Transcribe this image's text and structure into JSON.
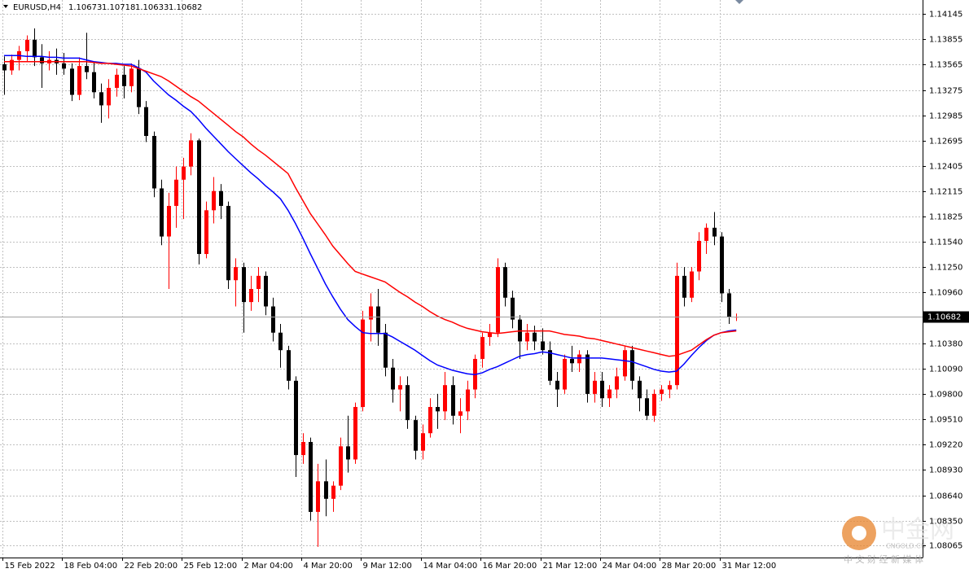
{
  "chart_data": {
    "type": "candlestick",
    "symbol": "EURUSD,H4",
    "categories": [
      "15 Feb 2022",
      null,
      null,
      null,
      null,
      null,
      null,
      null,
      "18 Feb 04:00",
      null,
      null,
      null,
      null,
      null,
      null,
      null,
      "22 Feb 20:00",
      null,
      null,
      null,
      null,
      null,
      null,
      null,
      "25 Feb 12:00",
      null,
      null,
      null,
      null,
      null,
      null,
      null,
      "2 Mar 04:00",
      null,
      null,
      null,
      null,
      null,
      null,
      null,
      "4 Mar 20:00",
      null,
      null,
      null,
      null,
      null,
      null,
      null,
      "9 Mar 12:00",
      null,
      null,
      null,
      null,
      null,
      null,
      null,
      "14 Mar 04:00",
      null,
      null,
      null,
      null,
      null,
      null,
      null,
      "16 Mar 20:00",
      null,
      null,
      null,
      null,
      null,
      null,
      null,
      "21 Mar 12:00",
      null,
      null,
      null,
      null,
      null,
      null,
      null,
      "24 Mar 04:00",
      null,
      null,
      null,
      null,
      null,
      null,
      null,
      "28 Mar 20:00",
      null,
      null,
      null,
      null,
      null,
      null,
      null,
      "31 Mar 12:00",
      null,
      null
    ],
    "candles": [
      [
        1.1357,
        1.1366,
        1.1322,
        1.135
      ],
      [
        1.135,
        1.1368,
        1.1345,
        1.1362
      ],
      [
        1.1362,
        1.1378,
        1.135,
        1.1372
      ],
      [
        1.1372,
        1.139,
        1.136,
        1.1385
      ],
      [
        1.1385,
        1.1398,
        1.1355,
        1.1365
      ],
      [
        1.1365,
        1.138,
        1.133,
        1.1358
      ],
      [
        1.1358,
        1.1372,
        1.135,
        1.1362
      ],
      [
        1.1362,
        1.1375,
        1.1345,
        1.1358
      ],
      [
        1.1358,
        1.137,
        1.1345,
        1.1352
      ],
      [
        1.1352,
        1.1358,
        1.1315,
        1.1322
      ],
      [
        1.1322,
        1.1365,
        1.1316,
        1.1355
      ],
      [
        1.1355,
        1.1393,
        1.134,
        1.1348
      ],
      [
        1.1348,
        1.136,
        1.1318,
        1.1325
      ],
      [
        1.1325,
        1.1335,
        1.129,
        1.131
      ],
      [
        1.131,
        1.134,
        1.1295,
        1.133
      ],
      [
        1.133,
        1.1352,
        1.132,
        1.1345
      ],
      [
        1.1345,
        1.1355,
        1.1318,
        1.1332
      ],
      [
        1.1332,
        1.1358,
        1.1325,
        1.1352
      ],
      [
        1.1352,
        1.1362,
        1.13,
        1.1308
      ],
      [
        1.1308,
        1.1315,
        1.1268,
        1.1275
      ],
      [
        1.1275,
        1.128,
        1.1205,
        1.1215
      ],
      [
        1.1215,
        1.1225,
        1.115,
        1.116
      ],
      [
        1.116,
        1.121,
        1.11,
        1.1195
      ],
      [
        1.1195,
        1.124,
        1.117,
        1.1225
      ],
      [
        1.1225,
        1.125,
        1.118,
        1.124
      ],
      [
        1.124,
        1.1278,
        1.123,
        1.127
      ],
      [
        1.127,
        1.1272,
        1.1128,
        1.114
      ],
      [
        1.114,
        1.12,
        1.1135,
        1.119
      ],
      [
        1.119,
        1.1228,
        1.1175,
        1.1212
      ],
      [
        1.1212,
        1.122,
        1.118,
        1.1195
      ],
      [
        1.1195,
        1.12,
        1.11,
        1.111
      ],
      [
        1.111,
        1.1135,
        1.108,
        1.1125
      ],
      [
        1.1125,
        1.113,
        1.105,
        1.1085
      ],
      [
        1.1085,
        1.1115,
        1.1075,
        1.11
      ],
      [
        1.11,
        1.1125,
        1.1085,
        1.1115
      ],
      [
        1.1115,
        1.112,
        1.107,
        1.108
      ],
      [
        1.108,
        1.109,
        1.104,
        1.105
      ],
      [
        1.105,
        1.106,
        1.101,
        1.103
      ],
      [
        1.103,
        1.1035,
        1.0985,
        1.0995
      ],
      [
        1.0995,
        1.1,
        1.0885,
        1.091
      ],
      [
        1.091,
        1.0935,
        1.09,
        1.0925
      ],
      [
        1.0925,
        1.093,
        1.0835,
        1.0845
      ],
      [
        1.0845,
        1.09,
        1.0805,
        1.088
      ],
      [
        1.088,
        1.0905,
        1.084,
        1.086
      ],
      [
        1.086,
        1.088,
        1.0845,
        1.0875
      ],
      [
        1.0875,
        1.093,
        1.087,
        1.092
      ],
      [
        1.092,
        1.0955,
        1.089,
        1.0905
      ],
      [
        1.0905,
        1.097,
        1.09,
        1.0965
      ],
      [
        1.0965,
        1.1075,
        1.096,
        1.1065
      ],
      [
        1.1065,
        1.1095,
        1.104,
        1.108
      ],
      [
        1.108,
        1.11,
        1.1035,
        1.105
      ],
      [
        1.105,
        1.106,
        1.1,
        1.101
      ],
      [
        1.101,
        1.102,
        1.097,
        1.0985
      ],
      [
        1.0985,
        1.1,
        1.096,
        1.099
      ],
      [
        1.099,
        1.1,
        1.094,
        1.095
      ],
      [
        1.095,
        1.0955,
        1.0905,
        1.0915
      ],
      [
        1.0915,
        1.0945,
        1.0905,
        1.0935
      ],
      [
        1.0935,
        1.0975,
        1.093,
        1.0965
      ],
      [
        1.0965,
        1.098,
        1.094,
        1.096
      ],
      [
        1.096,
        1.1005,
        1.095,
        1.099
      ],
      [
        1.099,
        1.1,
        1.0945,
        1.0955
      ],
      [
        1.0955,
        1.0975,
        1.0935,
        1.096
      ],
      [
        1.096,
        1.0995,
        1.095,
        1.0985
      ],
      [
        1.0985,
        1.1025,
        1.0975,
        1.102
      ],
      [
        1.102,
        1.105,
        1.101,
        1.1045
      ],
      [
        1.1045,
        1.106,
        1.1035,
        1.105
      ],
      [
        1.105,
        1.1135,
        1.1045,
        1.1125
      ],
      [
        1.1125,
        1.113,
        1.108,
        1.109
      ],
      [
        1.109,
        1.1098,
        1.1055,
        1.1065
      ],
      [
        1.1065,
        1.107,
        1.102,
        1.104
      ],
      [
        1.104,
        1.106,
        1.103,
        1.105
      ],
      [
        1.105,
        1.1058,
        1.103,
        1.104
      ],
      [
        1.104,
        1.1055,
        1.1025,
        1.103
      ],
      [
        1.103,
        1.104,
        1.099,
        1.0995
      ],
      [
        1.0995,
        1.1005,
        1.0965,
        1.0985
      ],
      [
        1.0985,
        1.1025,
        1.098,
        1.102
      ],
      [
        1.102,
        1.1035,
        1.1005,
        1.1015
      ],
      [
        1.1015,
        1.103,
        1.1005,
        1.1025
      ],
      [
        1.1025,
        1.103,
        1.097,
        1.098
      ],
      [
        1.098,
        1.1005,
        1.097,
        1.0995
      ],
      [
        1.0995,
        1.1005,
        1.0965,
        1.0975
      ],
      [
        1.0975,
        1.099,
        1.0965,
        1.0985
      ],
      [
        1.0985,
        1.101,
        1.0975,
        1.1
      ],
      [
        1.1,
        1.1035,
        1.0995,
        1.103
      ],
      [
        1.103,
        1.1035,
        1.0985,
        1.0995
      ],
      [
        1.0995,
        1.1,
        1.096,
        1.0975
      ],
      [
        1.0975,
        1.0985,
        1.095,
        1.0955
      ],
      [
        1.0955,
        1.0985,
        1.0948,
        1.098
      ],
      [
        1.098,
        1.099,
        1.0972,
        1.0985
      ],
      [
        1.0985,
        1.0995,
        1.0975,
        1.099
      ],
      [
        1.099,
        1.113,
        1.0985,
        1.1115
      ],
      [
        1.1115,
        1.1125,
        1.108,
        1.109
      ],
      [
        1.109,
        1.1125,
        1.1085,
        1.112
      ],
      [
        1.112,
        1.1165,
        1.111,
        1.1155
      ],
      [
        1.1155,
        1.1175,
        1.114,
        1.117
      ],
      [
        1.117,
        1.1188,
        1.115,
        1.116
      ],
      [
        1.116,
        1.1165,
        1.1085,
        1.1095
      ],
      [
        1.1095,
        1.11,
        1.106,
        1.1068
      ],
      [
        1.10673,
        1.10718,
        1.10633,
        1.10682
      ]
    ],
    "up_color": "#ff0000",
    "down_color": "#000000",
    "series": [
      {
        "color": "#0000ff",
        "values": [
          1.1367,
          1.1367,
          1.1367,
          1.1366,
          1.1366,
          1.1366,
          1.1365,
          1.1365,
          1.1364,
          1.1364,
          1.1364,
          1.1362,
          1.136,
          1.1359,
          1.1358,
          1.1358,
          1.1357,
          1.1357,
          1.1353,
          1.1348,
          1.1338,
          1.133,
          1.1322,
          1.1316,
          1.1309,
          1.1303,
          1.1294,
          1.1284,
          1.1275,
          1.1266,
          1.1257,
          1.1249,
          1.1241,
          1.1233,
          1.1226,
          1.1218,
          1.1211,
          1.1203,
          1.119,
          1.1175,
          1.1158,
          1.114,
          1.1123,
          1.1106,
          1.1091,
          1.1077,
          1.1065,
          1.1057,
          1.105,
          1.1049,
          1.1049,
          1.1049,
          1.1045,
          1.104,
          1.1035,
          1.103,
          1.1024,
          1.1018,
          1.1013,
          1.101,
          1.1007,
          1.1005,
          1.1003,
          1.1002,
          1.1004,
          1.1008,
          1.1011,
          1.1015,
          1.1019,
          1.1023,
          1.1025,
          1.1026,
          1.1028,
          1.1027,
          1.1025,
          1.1023,
          1.1021,
          1.1021,
          1.1021,
          1.1021,
          1.1021,
          1.102,
          1.1019,
          1.1018,
          1.1017,
          1.1014,
          1.1011,
          1.1008,
          1.1006,
          1.1005,
          1.1006,
          1.1014,
          1.1024,
          1.1033,
          1.1041,
          1.1047,
          1.105,
          1.1052,
          1.1053
        ]
      },
      {
        "color": "#ff0000",
        "values": [
          1.136,
          1.136,
          1.136,
          1.136,
          1.136,
          1.136,
          1.136,
          1.136,
          1.136,
          1.136,
          1.136,
          1.136,
          1.1359,
          1.1358,
          1.1358,
          1.1357,
          1.1356,
          1.1355,
          1.1352,
          1.1349,
          1.1346,
          1.1343,
          1.1338,
          1.1332,
          1.1326,
          1.132,
          1.1315,
          1.1308,
          1.1301,
          1.1294,
          1.1287,
          1.128,
          1.1274,
          1.1266,
          1.1259,
          1.1253,
          1.1246,
          1.1239,
          1.1232,
          1.1216,
          1.1201,
          1.1186,
          1.1174,
          1.1162,
          1.1149,
          1.1139,
          1.1129,
          1.112,
          1.1117,
          1.1114,
          1.1111,
          1.1108,
          1.1102,
          1.1096,
          1.1091,
          1.1085,
          1.108,
          1.1074,
          1.1069,
          1.1065,
          1.1062,
          1.1058,
          1.1055,
          1.1053,
          1.1051,
          1.105,
          1.1049,
          1.105,
          1.1051,
          1.1052,
          1.1052,
          1.1052,
          1.1052,
          1.1052,
          1.105,
          1.1048,
          1.1047,
          1.1046,
          1.1044,
          1.1043,
          1.1041,
          1.1039,
          1.1037,
          1.1035,
          1.1033,
          1.1031,
          1.1029,
          1.1027,
          1.1025,
          1.1023,
          1.1024,
          1.1027,
          1.103,
          1.1036,
          1.1042,
          1.1047,
          1.105,
          1.1051,
          1.1052
        ]
      }
    ],
    "ylim": [
      1.07928,
      1.14305
    ],
    "yticks": [
      1.14145,
      1.13855,
      1.13565,
      1.13275,
      1.12985,
      1.12695,
      1.12405,
      1.12115,
      1.11825,
      {
        "value": 1.1154,
        "label": "1.11540"
      },
      {
        "value": 1.1125,
        "label": "1.11250"
      },
      {
        "value": 1.1096,
        "label": "1.10960"
      },
      {
        "value": 1.1038,
        "label": "1.10380"
      },
      {
        "value": 1.1009,
        "label": "1.10090"
      },
      {
        "value": 1.098,
        "label": "1.09800"
      },
      {
        "value": 1.0951,
        "label": "1.09510"
      },
      {
        "value": 1.0922,
        "label": "1.09220"
      },
      {
        "value": 1.0893,
        "label": "1.08930"
      },
      {
        "value": 1.0864,
        "label": "1.08640"
      },
      {
        "value": 1.0835,
        "label": "1.08350"
      },
      1.08065
    ],
    "grid": true
  },
  "watermark": {
    "logo": "中金网",
    "site": "CNGOLD.CN",
    "slogan": "中 文 财 经 新 媒 体"
  }
}
